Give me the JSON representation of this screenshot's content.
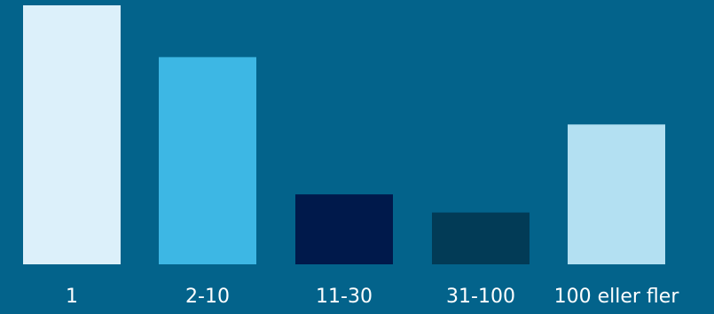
{
  "colors": {
    "background": "#03638b",
    "label_text": "#ffffff"
  },
  "chart_data": {
    "type": "bar",
    "title": "",
    "xlabel": "",
    "ylabel": "",
    "categories": [
      "1",
      "2-10",
      "11-30",
      "31-100",
      "100 eller fler"
    ],
    "values": [
      100,
      80,
      27,
      20,
      54
    ],
    "bar_colors": [
      "#dcf0fa",
      "#3db7e4",
      "#00194b",
      "#023b56",
      "#b3e0f2"
    ],
    "ylim": [
      0,
      100
    ],
    "grid": false,
    "legend": "none",
    "axes_visible": false,
    "value_labels_visible": false
  }
}
